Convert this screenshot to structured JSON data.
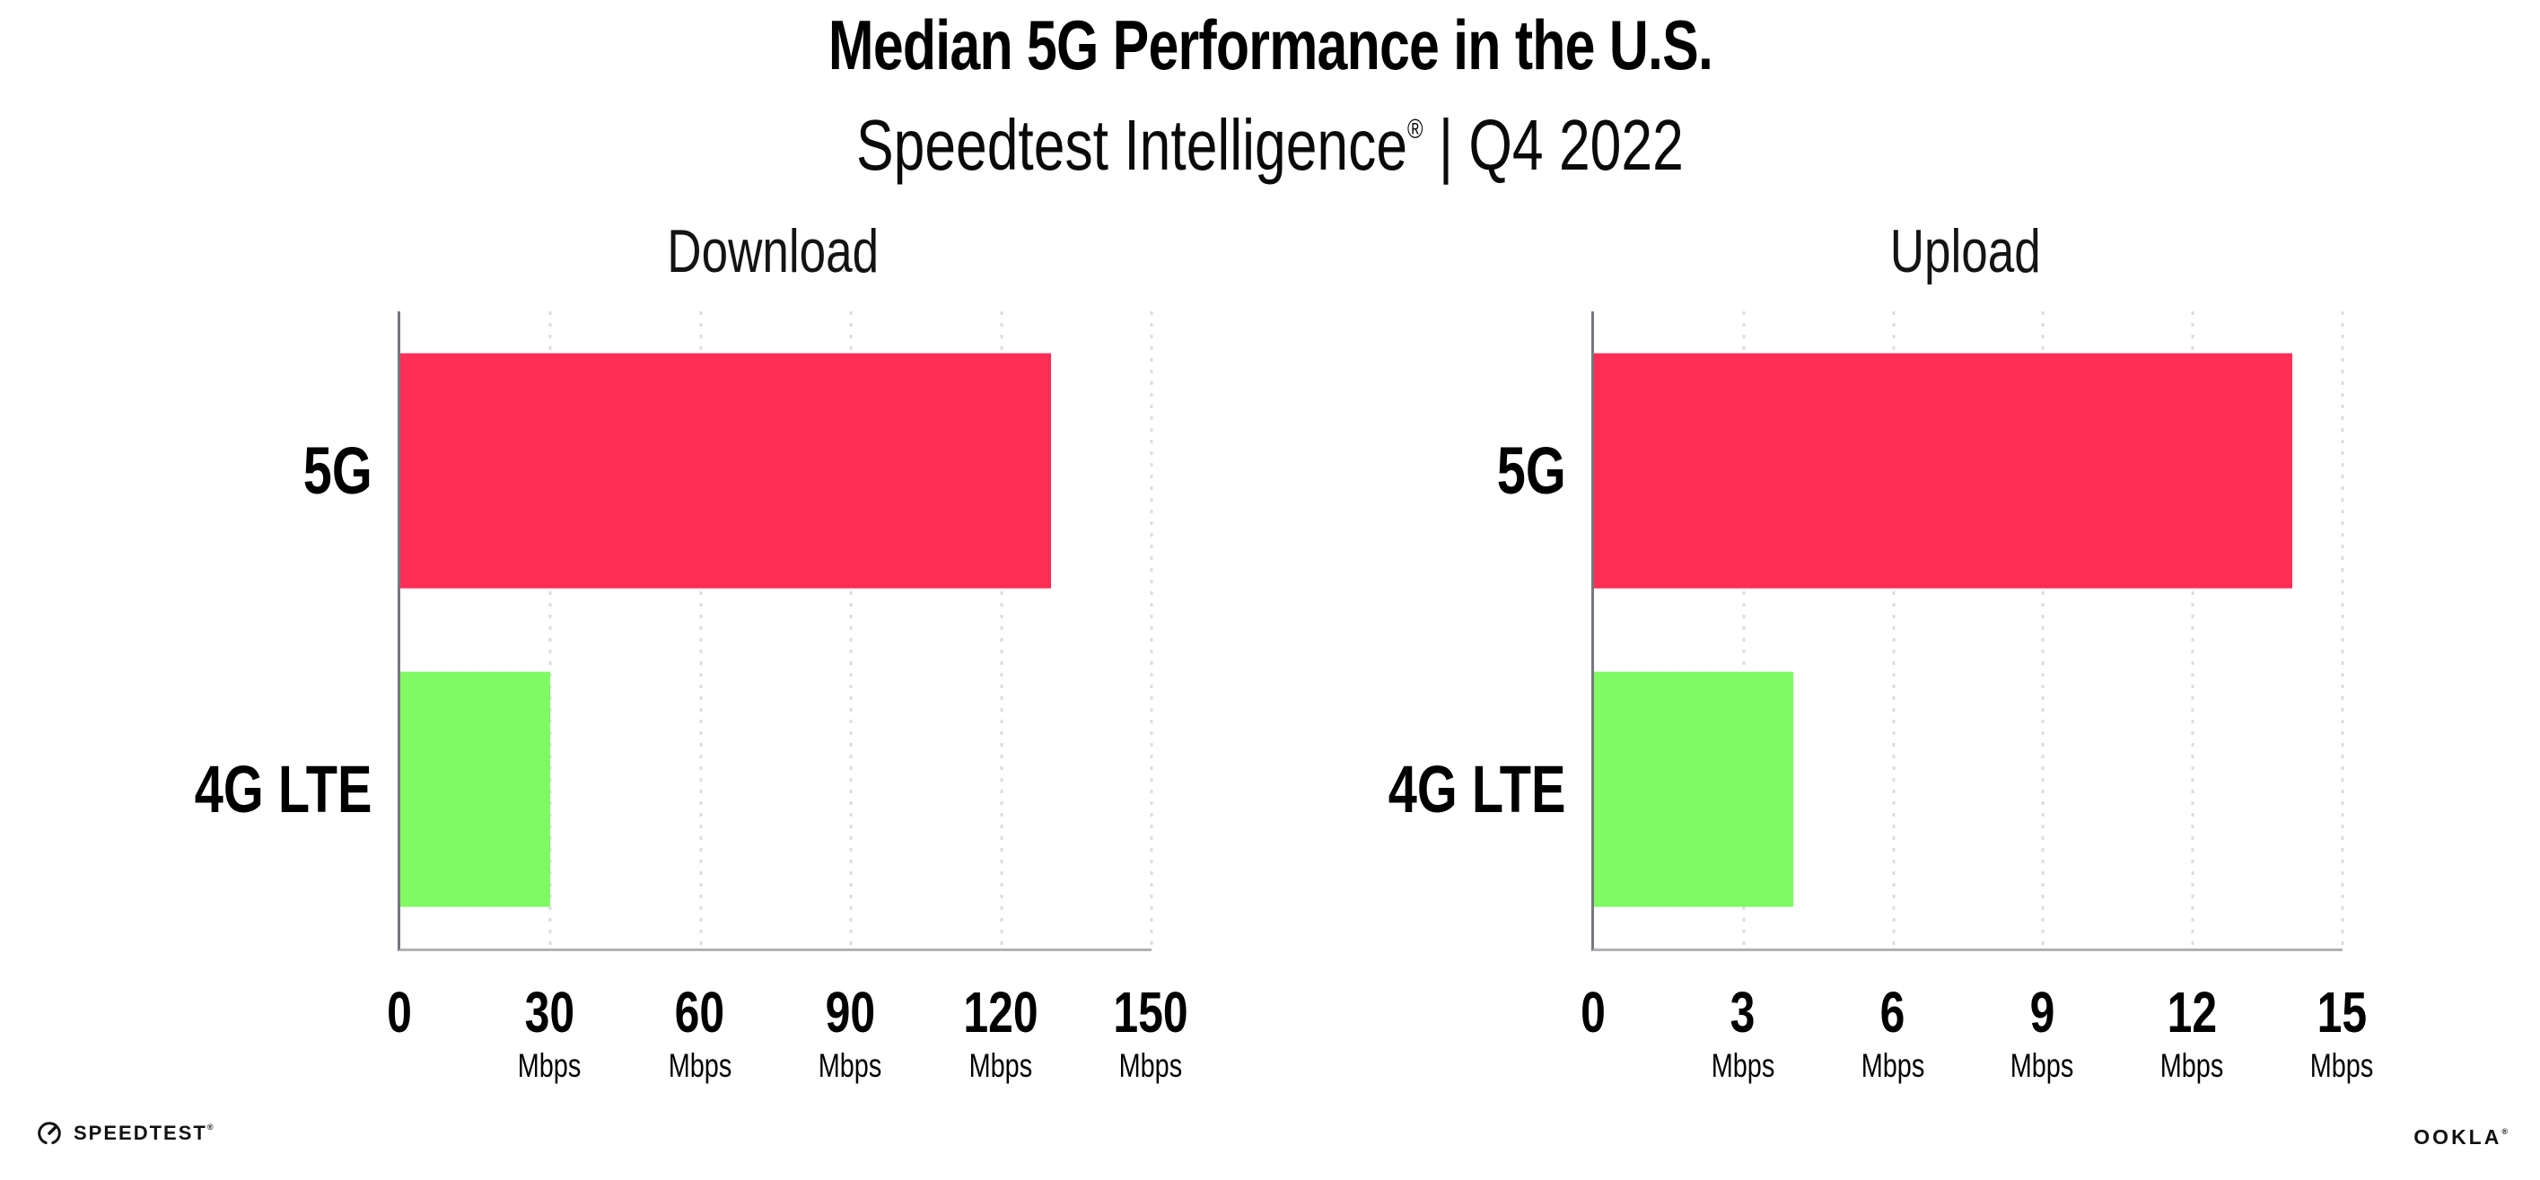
{
  "page": {
    "title": "Median 5G Performance in the U.S.",
    "subtitle": {
      "prefix": "Speedtest Intelligence",
      "mark": "®",
      "suffix": " | Q4 2022"
    }
  },
  "colors": {
    "bar_5g": "#fe2e57",
    "bar_4g_lte": "#7ffa62",
    "gridline": "#dbdce4",
    "axis_left": "#76767e",
    "axis_bottom": "#b1b1b5"
  },
  "chart_data": [
    {
      "type": "bar",
      "orientation": "horizontal",
      "title": "Download",
      "categories": [
        "5G",
        "4G LTE"
      ],
      "values": [
        130,
        30
      ],
      "unit": "Mbps",
      "xlim": [
        0,
        150
      ],
      "xticks": [
        0,
        30,
        60,
        90,
        120,
        150
      ],
      "tick_unit_label": "Mbps",
      "grid": "dotted-vertical",
      "legend": "none",
      "bar_colors": [
        "#fe2e57",
        "#7ffa62"
      ]
    },
    {
      "type": "bar",
      "orientation": "horizontal",
      "title": "Upload",
      "categories": [
        "5G",
        "4G LTE"
      ],
      "values": [
        14,
        4
      ],
      "unit": "Mbps",
      "xlim": [
        0,
        15
      ],
      "xticks": [
        0,
        3,
        6,
        9,
        12,
        15
      ],
      "tick_unit_label": "Mbps",
      "grid": "dotted-vertical",
      "legend": "none",
      "bar_colors": [
        "#fe2e57",
        "#7ffa62"
      ]
    }
  ],
  "footer": {
    "speedtest_logo_text": "SPEEDTEST",
    "speedtest_logo_mark": "®",
    "ookla_logo_text": "OOKLA",
    "ookla_logo_mark": "®"
  }
}
